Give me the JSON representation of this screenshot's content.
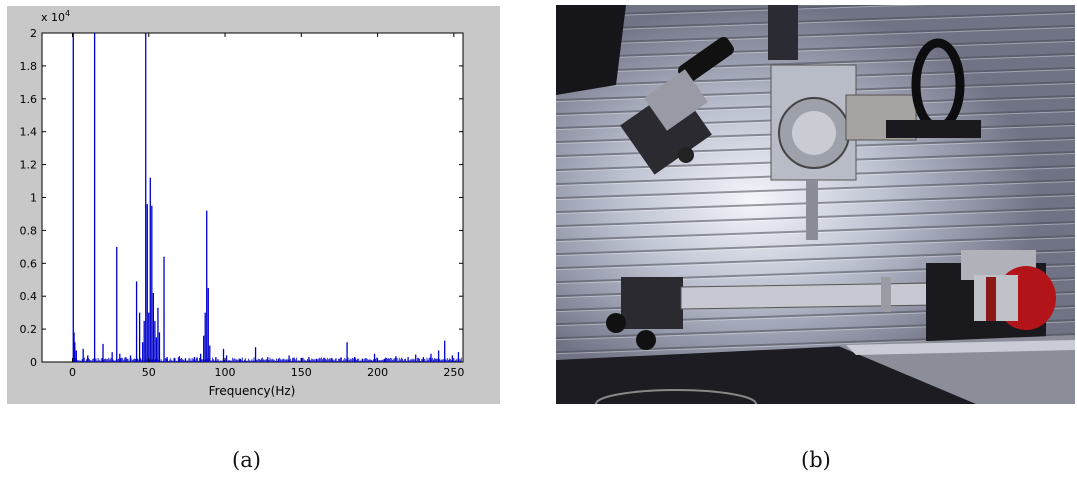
{
  "chart_data": {
    "type": "bar",
    "xlabel": "Frequency(Hz)",
    "ylabel": "",
    "title": "",
    "xlim": [
      -20,
      256
    ],
    "ylim": [
      0,
      20000
    ],
    "scale_label": "x 10",
    "scale_exponent": "4",
    "x_ticks": [
      0,
      50,
      100,
      150,
      200,
      250
    ],
    "x_tick_labels": [
      "0",
      "50",
      "100",
      "150",
      "200",
      "250"
    ],
    "y_ticks": [
      0,
      2000,
      4000,
      6000,
      8000,
      10000,
      12000,
      14000,
      16000,
      18000,
      20000
    ],
    "y_tick_labels": [
      "0",
      "0.2",
      "0.4",
      "0.6",
      "0.8",
      "1",
      "1.2",
      "1.4",
      "1.6",
      "1.8",
      "2"
    ],
    "series_color": "#0000cc",
    "peaks": [
      {
        "x": 0.5,
        "y": 20000
      },
      {
        "x": 1.0,
        "y": 1800
      },
      {
        "x": 1.5,
        "y": 1200
      },
      {
        "x": 2.5,
        "y": 700
      },
      {
        "x": 7,
        "y": 800
      },
      {
        "x": 10,
        "y": 400
      },
      {
        "x": 14.5,
        "y": 20000
      },
      {
        "x": 20,
        "y": 1100
      },
      {
        "x": 26,
        "y": 600
      },
      {
        "x": 29,
        "y": 7000
      },
      {
        "x": 31,
        "y": 500
      },
      {
        "x": 35,
        "y": 300
      },
      {
        "x": 38,
        "y": 400
      },
      {
        "x": 42,
        "y": 4900
      },
      {
        "x": 44,
        "y": 3000
      },
      {
        "x": 46,
        "y": 1200
      },
      {
        "x": 47,
        "y": 2500
      },
      {
        "x": 48,
        "y": 20000
      },
      {
        "x": 49,
        "y": 9600
      },
      {
        "x": 50,
        "y": 3000
      },
      {
        "x": 51,
        "y": 11200
      },
      {
        "x": 52,
        "y": 9500
      },
      {
        "x": 53,
        "y": 4200
      },
      {
        "x": 54,
        "y": 2500
      },
      {
        "x": 55,
        "y": 1500
      },
      {
        "x": 56,
        "y": 3300
      },
      {
        "x": 57,
        "y": 1800
      },
      {
        "x": 60,
        "y": 6400
      },
      {
        "x": 62,
        "y": 300
      },
      {
        "x": 67,
        "y": 250
      },
      {
        "x": 70,
        "y": 350
      },
      {
        "x": 74,
        "y": 200
      },
      {
        "x": 80,
        "y": 300
      },
      {
        "x": 84,
        "y": 500
      },
      {
        "x": 86,
        "y": 1600
      },
      {
        "x": 87,
        "y": 3000
      },
      {
        "x": 88,
        "y": 9200
      },
      {
        "x": 89,
        "y": 4500
      },
      {
        "x": 90,
        "y": 1000
      },
      {
        "x": 94,
        "y": 300
      },
      {
        "x": 99,
        "y": 800
      },
      {
        "x": 101,
        "y": 400
      },
      {
        "x": 110,
        "y": 200
      },
      {
        "x": 120,
        "y": 900
      },
      {
        "x": 128,
        "y": 300
      },
      {
        "x": 135,
        "y": 200
      },
      {
        "x": 142,
        "y": 400
      },
      {
        "x": 150,
        "y": 250
      },
      {
        "x": 155,
        "y": 300
      },
      {
        "x": 160,
        "y": 200
      },
      {
        "x": 170,
        "y": 250
      },
      {
        "x": 180,
        "y": 1200
      },
      {
        "x": 185,
        "y": 300
      },
      {
        "x": 190,
        "y": 200
      },
      {
        "x": 198,
        "y": 500
      },
      {
        "x": 205,
        "y": 200
      },
      {
        "x": 212,
        "y": 350
      },
      {
        "x": 220,
        "y": 300
      },
      {
        "x": 225,
        "y": 450
      },
      {
        "x": 230,
        "y": 300
      },
      {
        "x": 235,
        "y": 500
      },
      {
        "x": 240,
        "y": 700
      },
      {
        "x": 244,
        "y": 1300
      },
      {
        "x": 249,
        "y": 400
      },
      {
        "x": 253,
        "y": 600
      }
    ]
  },
  "captions": {
    "a": "(a)",
    "b": "(b)"
  }
}
